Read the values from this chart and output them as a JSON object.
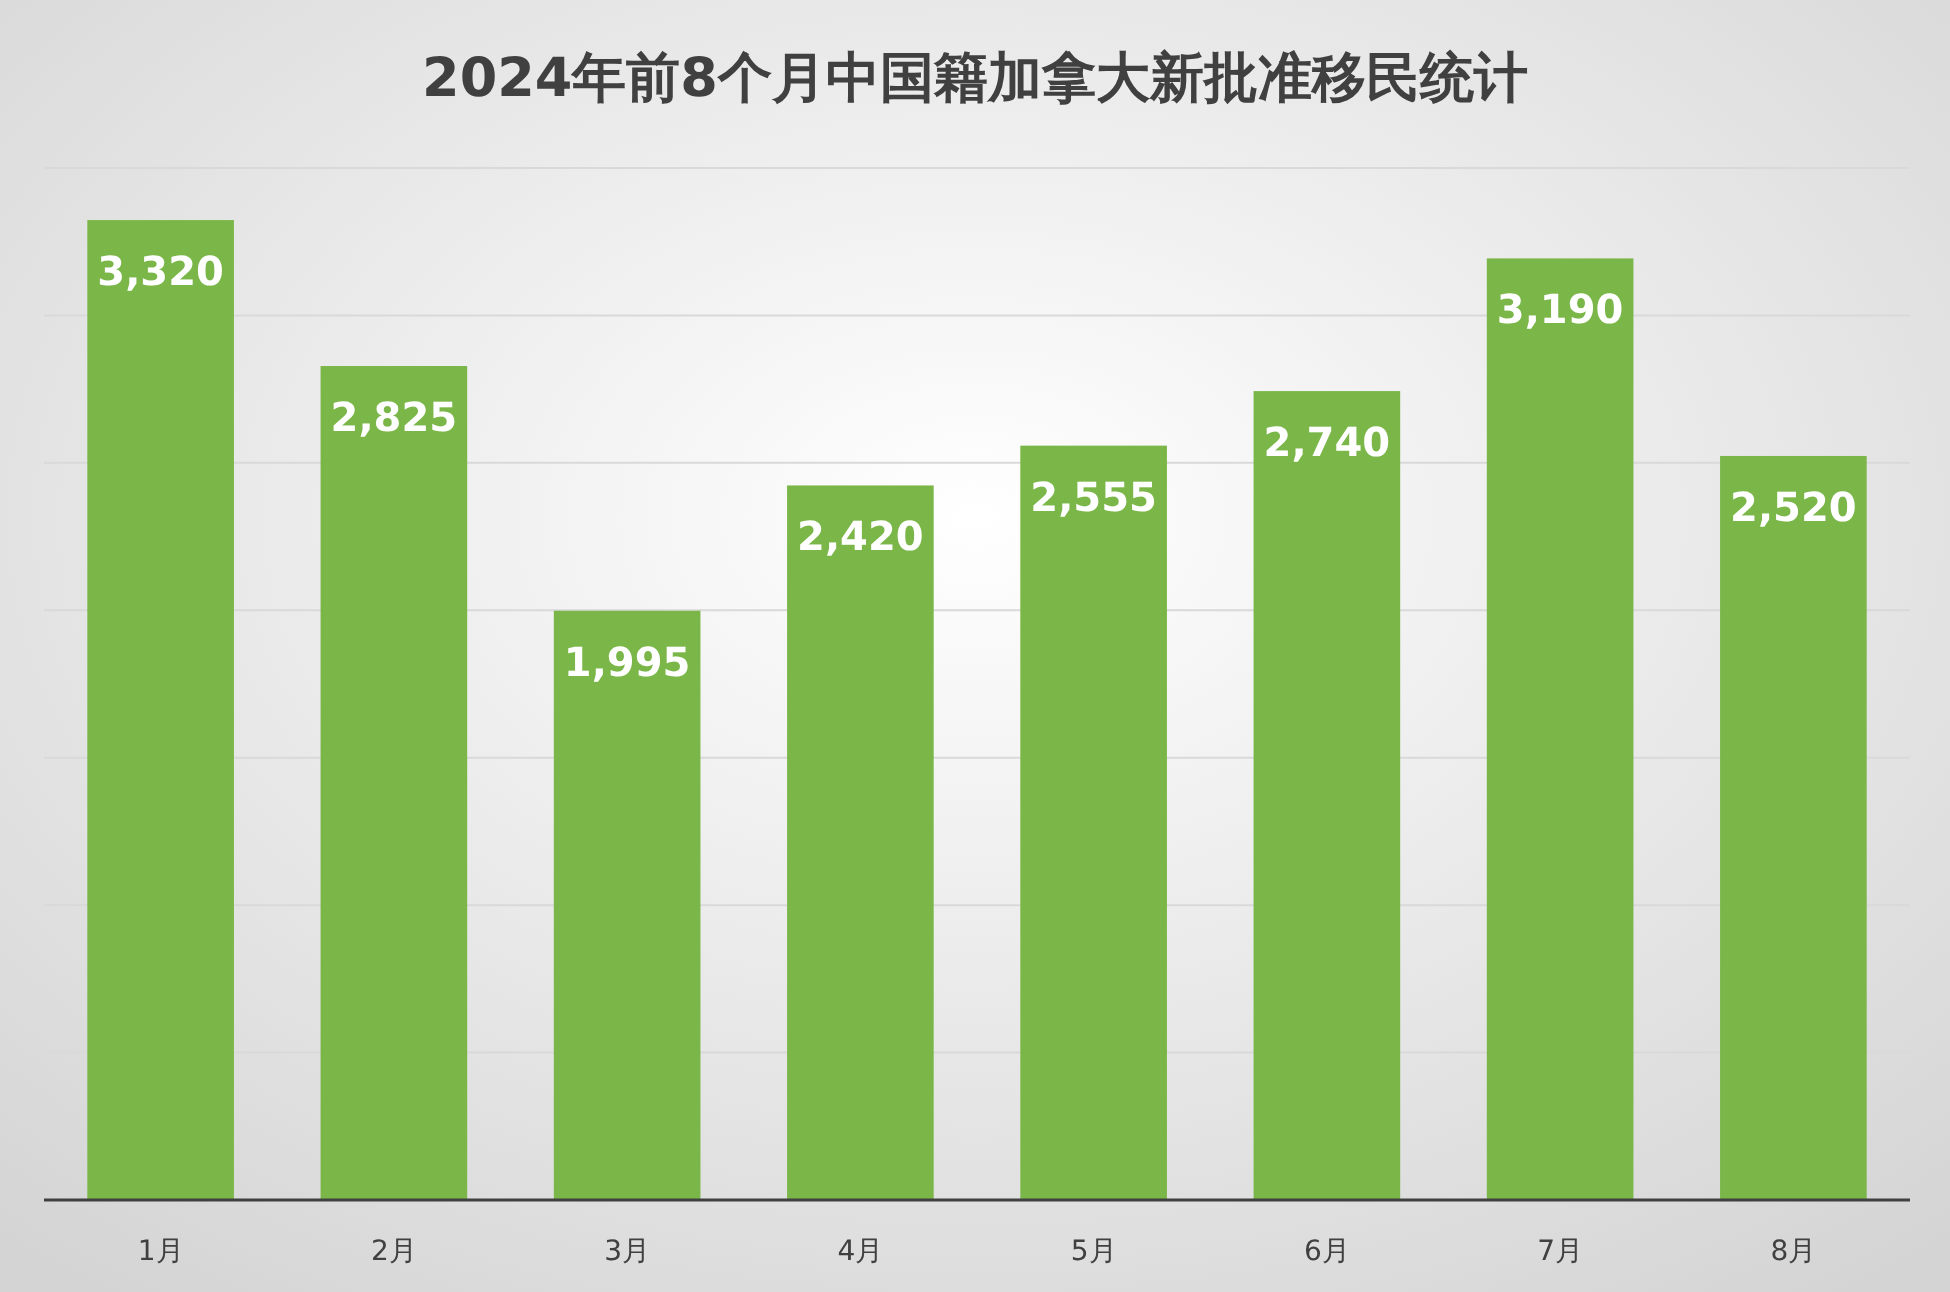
{
  "chart_data": {
    "type": "bar",
    "title": "2024年前8个月中国籍加拿大新批准移民统计",
    "categories": [
      "1月",
      "2月",
      "3月",
      "4月",
      "5月",
      "6月",
      "7月",
      "8月"
    ],
    "values": [
      3320,
      2825,
      1995,
      2420,
      2555,
      2740,
      3190,
      2520
    ],
    "value_labels": [
      "3,320",
      "2,825",
      "1,995",
      "2,420",
      "2,555",
      "2,740",
      "3,190",
      "2,520"
    ],
    "color": "#7ab648",
    "grid": "y"
  }
}
